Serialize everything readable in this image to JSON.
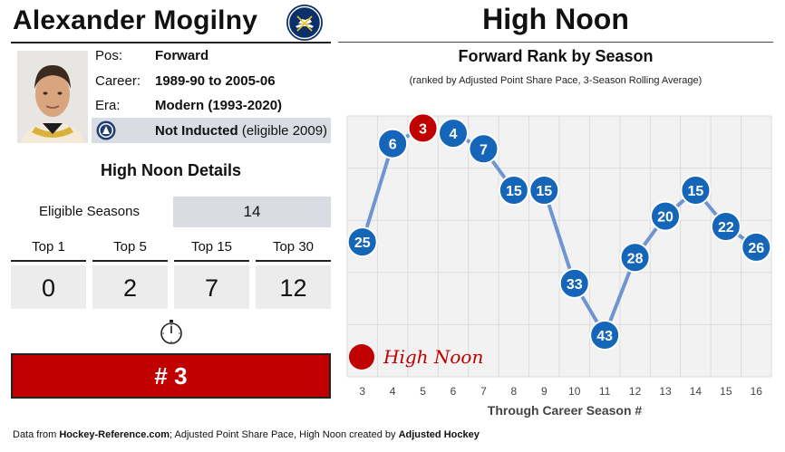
{
  "player": {
    "name": "Alexander Mogilny",
    "team_logo": "sabres-logo-icon",
    "photo": "player-headshot"
  },
  "info": {
    "pos_label": "Pos:",
    "pos_value": "Forward",
    "career_label": "Career:",
    "career_value": "1989-90 to 2005-06",
    "era_label": "Era:",
    "era_value": "Modern (1993-2020)",
    "hof_icon": "hockey-hall-of-fame-icon",
    "hof_status": "Not Inducted",
    "hof_eligible": "(eligible 2009)"
  },
  "details": {
    "title": "High Noon Details",
    "eligible_label": "Eligible Seasons",
    "eligible_value": "14",
    "tops": [
      {
        "label": "Top 1",
        "value": "0"
      },
      {
        "label": "Top 5",
        "value": "2"
      },
      {
        "label": "Top 15",
        "value": "7"
      },
      {
        "label": "Top 30",
        "value": "12"
      }
    ],
    "clock_icon": "stopwatch-icon",
    "rank": "# 3"
  },
  "header": {
    "title": "High Noon"
  },
  "chart_data": {
    "type": "line",
    "title": "Forward Rank by Season",
    "subtitle": "(ranked by Adjusted Point Share Pace, 3-Season Rolling Average)",
    "xlabel": "Through Career Season #",
    "ylabel": "",
    "x": [
      3,
      4,
      5,
      6,
      7,
      8,
      9,
      10,
      11,
      12,
      13,
      14,
      15,
      16
    ],
    "values": [
      25,
      6,
      3,
      4,
      7,
      15,
      15,
      33,
      43,
      28,
      20,
      15,
      22,
      26
    ],
    "y_inverted": true,
    "grid": true,
    "highlight_index": 2,
    "point_color": "#1565b8",
    "highlight_color": "#c00000",
    "line_color": "#6f95d0",
    "legend": {
      "label": "High Noon",
      "color": "#c00000",
      "placement": "bottom-left"
    }
  },
  "footer": {
    "prefix": "Data from ",
    "source": "Hockey-Reference.com",
    "middle": "; Adjusted Point Share Pace, High Noon created by ",
    "creator": "Adjusted Hockey"
  }
}
